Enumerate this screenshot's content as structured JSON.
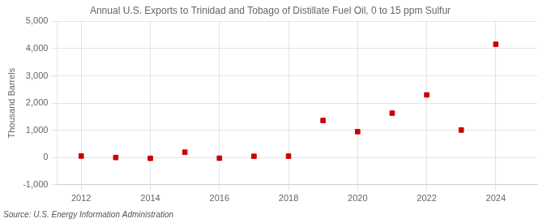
{
  "chart_data": {
    "type": "scatter",
    "title": "Annual U.S. Exports to Trinidad and Tobago of Distillate Fuel Oil, 0 to 15 ppm Sulfur",
    "ylabel": "Thousand Barrels",
    "source": "Source: U.S. Energy Information Administration",
    "x": [
      2012,
      2013,
      2014,
      2015,
      2016,
      2017,
      2018,
      2019,
      2020,
      2021,
      2022,
      2023,
      2024
    ],
    "values": [
      55,
      0,
      -30,
      195,
      -25,
      45,
      50,
      1360,
      950,
      1630,
      2300,
      1010,
      4160
    ],
    "color": "#cc0000",
    "marker": "square",
    "xlim": [
      2011.3,
      2025.2
    ],
    "xticks": [
      2012,
      2014,
      2016,
      2018,
      2020,
      2022,
      2024
    ],
    "ylim": [
      -1000,
      5000
    ],
    "yticks": [
      {
        "value": -1000,
        "label": "-1,000"
      },
      0,
      {
        "value": 1000,
        "label": "1,000"
      },
      {
        "value": 2000,
        "label": "2,000"
      },
      {
        "value": 3000,
        "label": "3,000"
      },
      {
        "value": 4000,
        "label": "4,000"
      },
      {
        "value": 5000,
        "label": "5,000"
      }
    ],
    "grid": true
  }
}
